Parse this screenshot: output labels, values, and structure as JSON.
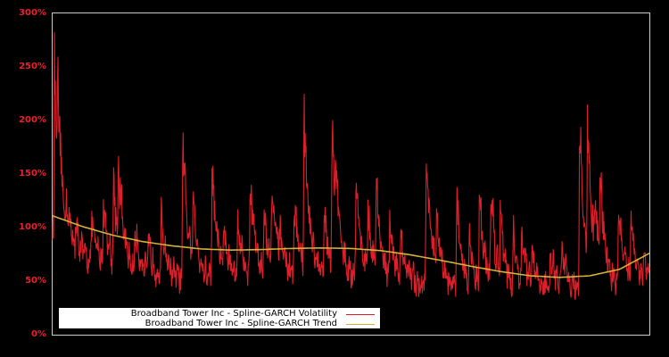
{
  "chart_data": {
    "type": "line",
    "title": "",
    "xlabel": "",
    "ylabel": "",
    "ylim": [
      0,
      300
    ],
    "y_ticks": [
      "0%",
      "50%",
      "100%",
      "150%",
      "200%",
      "250%",
      "300%"
    ],
    "y_tick_values": [
      0,
      50,
      100,
      150,
      200,
      250,
      300
    ],
    "grid": false,
    "legend_position": "lower-left",
    "background": "#000000",
    "axis_color": "#cccccc",
    "tick_label_color": "#e8212e",
    "x_range": [
      0,
      100
    ],
    "series": [
      {
        "name": "Broadband Tower Inc - Spline-GARCH Volatility",
        "color": "#dd1f2a",
        "baseline": [
          [
            0,
            95
          ],
          [
            2,
            70
          ],
          [
            5,
            68
          ],
          [
            8,
            62
          ],
          [
            12,
            55
          ],
          [
            16,
            52
          ],
          [
            20,
            50
          ],
          [
            25,
            48
          ],
          [
            30,
            50
          ],
          [
            35,
            50
          ],
          [
            40,
            50
          ],
          [
            45,
            50
          ],
          [
            50,
            50
          ],
          [
            55,
            47
          ],
          [
            60,
            46
          ],
          [
            65,
            42
          ],
          [
            70,
            38
          ],
          [
            75,
            37
          ],
          [
            80,
            38
          ],
          [
            85,
            40
          ],
          [
            90,
            42
          ],
          [
            95,
            42
          ],
          [
            100,
            45
          ]
        ],
        "peaks": [
          [
            0.3,
            275
          ],
          [
            0.8,
            255
          ],
          [
            1.5,
            140
          ],
          [
            2.3,
            138
          ],
          [
            3.8,
            105
          ],
          [
            6.5,
            110
          ],
          [
            8.5,
            130
          ],
          [
            10.2,
            155
          ],
          [
            11.0,
            175
          ],
          [
            13.8,
            102
          ],
          [
            16.0,
            90
          ],
          [
            18.2,
            113
          ],
          [
            21.8,
            190
          ],
          [
            23.5,
            138
          ],
          [
            26.7,
            172
          ],
          [
            28.6,
            105
          ],
          [
            31.0,
            115
          ],
          [
            33.1,
            160
          ],
          [
            35.4,
            122
          ],
          [
            36.7,
            155
          ],
          [
            38.0,
            108
          ],
          [
            40.5,
            135
          ],
          [
            42.1,
            222
          ],
          [
            45.5,
            120
          ],
          [
            46.8,
            213
          ],
          [
            47.4,
            180
          ],
          [
            50.8,
            155
          ],
          [
            52.8,
            120
          ],
          [
            54.2,
            150
          ],
          [
            56.5,
            109
          ],
          [
            58.3,
            97
          ],
          [
            62.6,
            185
          ],
          [
            64.3,
            117
          ],
          [
            67.7,
            137
          ],
          [
            69.8,
            95
          ],
          [
            71.5,
            143
          ],
          [
            73.4,
            152
          ],
          [
            75.0,
            132
          ],
          [
            77.2,
            96
          ],
          [
            78.6,
            105
          ],
          [
            80.3,
            77
          ],
          [
            83.4,
            82
          ],
          [
            85.3,
            83
          ],
          [
            88.3,
            205
          ],
          [
            89.6,
            220
          ],
          [
            90.8,
            142
          ],
          [
            91.7,
            168
          ],
          [
            94.8,
            128
          ],
          [
            96.9,
            120
          ],
          [
            99.0,
            80
          ]
        ]
      },
      {
        "name": "Broadband Tower Inc - Spline-GARCH Trend",
        "color": "#d4b13a",
        "points": [
          [
            0,
            111
          ],
          [
            5,
            101
          ],
          [
            10,
            93
          ],
          [
            15,
            87
          ],
          [
            20,
            83
          ],
          [
            25,
            80
          ],
          [
            30,
            79
          ],
          [
            35,
            79.5
          ],
          [
            40,
            80.5
          ],
          [
            45,
            81
          ],
          [
            50,
            80.5
          ],
          [
            55,
            78.5
          ],
          [
            60,
            74.5
          ],
          [
            65,
            69.5
          ],
          [
            70,
            64
          ],
          [
            75,
            59
          ],
          [
            80,
            55
          ],
          [
            85,
            53.5
          ],
          [
            90,
            55
          ],
          [
            95,
            61
          ],
          [
            100,
            76
          ]
        ]
      }
    ]
  },
  "legend": {
    "items": [
      {
        "label": "Broadband Tower Inc - Spline-GARCH Volatility",
        "color": "#dd1f2a"
      },
      {
        "label": "Broadband Tower Inc - Spline-GARCH Trend",
        "color": "#d4b13a"
      }
    ]
  }
}
